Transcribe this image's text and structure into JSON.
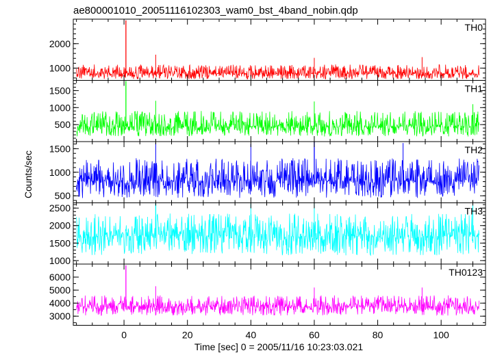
{
  "chart_data": {
    "type": "line",
    "title": "ae800001010_20051116102303_wam0_bst_4band_nobin.qdp",
    "xlabel": "Time [sec] 0 = 2005/11/16 10:23:03.021",
    "ylabel": "Counts/sec",
    "xlim": [
      -16,
      114
    ],
    "x_ticks": [
      0,
      20,
      40,
      60,
      80,
      100
    ],
    "x_data_range": [
      -15,
      112
    ],
    "grid": false,
    "legend": "none",
    "panels": [
      {
        "name": "TH0",
        "color": "#ff0000",
        "ylim": [
          500,
          3000
        ],
        "y_ticks": [
          1000,
          2000
        ],
        "baseline": 780,
        "band_low": 550,
        "band_high": 1150,
        "peak": {
          "x": 0.6,
          "y": 2950
        },
        "spikes": [
          {
            "x": 10,
            "y": 1550
          },
          {
            "x": 60,
            "y": 1420
          },
          {
            "x": 94,
            "y": 1450
          }
        ]
      },
      {
        "name": "TH1",
        "color": "#00ff00",
        "ylim": [
          0,
          1800
        ],
        "y_ticks": [
          500,
          1000,
          1500
        ],
        "baseline": 450,
        "band_low": 150,
        "band_high": 900,
        "peak": {
          "x": 0.6,
          "y": 1780
        },
        "spikes": [
          {
            "x": 10,
            "y": 1200
          },
          {
            "x": 60,
            "y": 1180
          },
          {
            "x": 110,
            "y": 1100
          }
        ]
      },
      {
        "name": "TH2",
        "color": "#0000ff",
        "ylim": [
          350,
          1650
        ],
        "y_ticks": [
          500,
          1000,
          1500
        ],
        "baseline": 820,
        "band_low": 450,
        "band_high": 1300,
        "peak": {
          "x": 60,
          "y": 1650
        },
        "spikes": [
          {
            "x": 10,
            "y": 1620
          },
          {
            "x": 40,
            "y": 1600
          },
          {
            "x": 88,
            "y": 1620
          }
        ]
      },
      {
        "name": "TH3",
        "color": "#00ffff",
        "ylim": [
          900,
          2650
        ],
        "y_ticks": [
          1000,
          1500,
          2000,
          2500
        ],
        "baseline": 1700,
        "band_low": 1150,
        "band_high": 2350,
        "peak": {
          "x": 10,
          "y": 2650
        },
        "spikes": [
          {
            "x": 60,
            "y": 2650
          },
          {
            "x": 110,
            "y": 2640
          },
          {
            "x": 40,
            "y": 2630
          }
        ]
      },
      {
        "name": "TH0123",
        "color": "#ff00ff",
        "ylim": [
          2300,
          7000
        ],
        "y_ticks": [
          3000,
          4000,
          5000,
          6000
        ],
        "baseline": 3750,
        "band_low": 3050,
        "band_high": 4600,
        "peak": {
          "x": 0.6,
          "y": 6900
        },
        "spikes": [
          {
            "x": 10,
            "y": 5300
          },
          {
            "x": 60,
            "y": 5200
          },
          {
            "x": 94,
            "y": 5200
          }
        ]
      }
    ]
  }
}
